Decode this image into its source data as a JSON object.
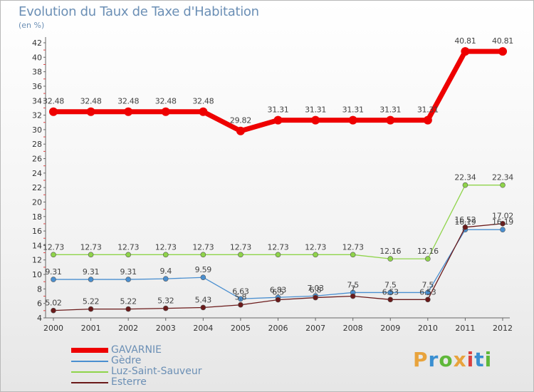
{
  "header": {
    "title": "Evolution du Taux de Taxe d'Habitation",
    "unit": "(en %)"
  },
  "logo": {
    "text": "Proxiti",
    "letters": [
      "P",
      "r",
      "o",
      "x",
      "i",
      "t",
      "i"
    ],
    "colors": [
      "#e8a33c",
      "#3a8fd1",
      "#5fb83a",
      "#e8a33c",
      "#d94040",
      "#3a8fd1",
      "#5fb83a"
    ]
  },
  "chart_data": {
    "type": "line",
    "title": "Evolution du Taux de Taxe d'Habitation",
    "ylabel": "(en %)",
    "xlabel": "",
    "categories": [
      "2000",
      "2001",
      "2002",
      "2003",
      "2004",
      "2005",
      "2006",
      "2007",
      "2008",
      "2009",
      "2010",
      "2011",
      "2012"
    ],
    "ylim": [
      4,
      42
    ],
    "yticks": [
      4,
      6,
      8,
      10,
      12,
      14,
      16,
      18,
      20,
      22,
      24,
      26,
      28,
      30,
      32,
      34,
      36,
      38,
      40,
      42
    ],
    "grid": false,
    "legend_position": "bottom-left",
    "series": [
      {
        "name": "GAVARNIE",
        "color": "#ee0000",
        "width": 7,
        "values": [
          32.48,
          32.48,
          32.48,
          32.48,
          32.48,
          29.82,
          31.31,
          31.31,
          31.31,
          31.31,
          31.31,
          40.81,
          40.81
        ],
        "labels": [
          "32.48",
          "32.48",
          "32.48",
          "32.48",
          "32.48",
          "29.82",
          "31.31",
          "31.31",
          "31.31",
          "31.31",
          "31.31",
          "40.81",
          "40.81"
        ]
      },
      {
        "name": "Gèdre",
        "color": "#4a8fd0",
        "width": 1.3,
        "values": [
          9.31,
          9.31,
          9.31,
          9.4,
          9.59,
          6.63,
          6.83,
          7.03,
          7.5,
          7.5,
          7.5,
          16.19,
          16.19
        ],
        "labels": [
          "9.31",
          "9.31",
          "9.31",
          "9.4",
          "9.59",
          "6.63",
          "6.83",
          "7.03",
          "7.5",
          "7.5",
          "7.5",
          "16.19",
          "16.19"
        ]
      },
      {
        "name": "Luz-Saint-Sauveur",
        "color": "#8fd44a",
        "width": 1.3,
        "values": [
          12.73,
          12.73,
          12.73,
          12.73,
          12.73,
          12.73,
          12.73,
          12.73,
          12.73,
          12.16,
          12.16,
          22.34,
          22.34
        ],
        "labels": [
          "12.73",
          "12.73",
          "12.73",
          "12.73",
          "12.73",
          "12.73",
          "12.73",
          "12.73",
          "12.73",
          "12.16",
          "12.16",
          "22.34",
          "22.34"
        ]
      },
      {
        "name": "Esterre",
        "color": "#6b1a1a",
        "width": 1.3,
        "values": [
          5.02,
          5.22,
          5.22,
          5.32,
          5.43,
          5.8,
          6.5,
          6.8,
          7.0,
          6.53,
          6.53,
          16.52,
          17.02
        ],
        "labels": [
          "5.02",
          "5.22",
          "5.22",
          "5.32",
          "5.43",
          "5.8",
          "6.5",
          "6.8",
          "7",
          "6.53",
          "6.53",
          "16.52",
          "17.02"
        ]
      }
    ]
  }
}
